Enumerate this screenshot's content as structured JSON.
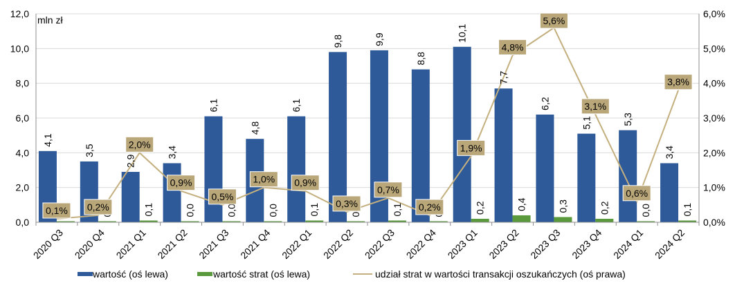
{
  "chart_data": {
    "type": "bar",
    "y_unit_label": "mln zł",
    "categories": [
      "2020 Q3",
      "2020 Q4",
      "2021 Q1",
      "2021 Q2",
      "2021 Q3",
      "2021 Q4",
      "2022 Q1",
      "2022 Q2",
      "2022 Q3",
      "2022 Q4",
      "2023 Q1",
      "2023 Q2",
      "2023 Q3",
      "2023 Q4",
      "2024 Q1",
      "2024 Q2"
    ],
    "series": [
      {
        "name": "wartość (oś lewa)",
        "kind": "bar",
        "axis": "left",
        "color": "#2E5A9A",
        "values": [
          4.1,
          3.5,
          2.9,
          3.4,
          6.1,
          4.8,
          6.1,
          9.8,
          9.9,
          8.8,
          10.1,
          7.7,
          6.2,
          5.1,
          5.3,
          3.4
        ],
        "labels": [
          "4,1",
          "3,5",
          "2,9",
          "3,4",
          "6,1",
          "4,8",
          "6,1",
          "9,8",
          "9,9",
          "8,8",
          "10,1",
          "7,7",
          "6,2",
          "5,1",
          "5,3",
          "3,4"
        ]
      },
      {
        "name": "wartość strat (oś lewa)",
        "kind": "bar",
        "axis": "left",
        "color": "#5B9A3C",
        "values": [
          0.0,
          0.0,
          0.1,
          0.0,
          0.0,
          0.0,
          0.1,
          0.0,
          0.1,
          0.0,
          0.2,
          0.4,
          0.3,
          0.2,
          0.0,
          0.1
        ],
        "labels": [
          "0,0",
          "0,0",
          "0,1",
          "0,0",
          "0,0",
          "0,0",
          "0,1",
          "0,0",
          "0,1",
          "0,0",
          "0,2",
          "0,4",
          "0,3",
          "0,2",
          "0,0",
          "0,1"
        ]
      },
      {
        "name": "udział strat w wartości transakcji oszukańczych (oś prawa)",
        "kind": "line",
        "axis": "right",
        "color": "#C4AF7E",
        "values": [
          0.1,
          0.2,
          2.0,
          0.9,
          0.5,
          1.0,
          0.9,
          0.3,
          0.7,
          0.2,
          1.9,
          4.8,
          5.6,
          3.1,
          0.6,
          3.8
        ],
        "labels": [
          "0,1%",
          "0,2%",
          "2,0%",
          "0,9%",
          "0,5%",
          "1,0%",
          "0,9%",
          "0,3%",
          "0,7%",
          "0,2%",
          "1,9%",
          "4,8%",
          "5,6%",
          "3,1%",
          "0,6%",
          "3,8%"
        ]
      }
    ],
    "y_left": {
      "min": 0,
      "max": 12,
      "ticks": [
        "0,0",
        "2,0",
        "4,0",
        "6,0",
        "8,0",
        "10,0",
        "12,0"
      ]
    },
    "y_right": {
      "min": 0,
      "max": 6,
      "ticks": [
        "0,0%",
        "1,0%",
        "2,0%",
        "3,0%",
        "4,0%",
        "5,0%",
        "6,0%"
      ]
    },
    "grid": true,
    "legend_position": "bottom",
    "label_box_color": "#B9A77A"
  }
}
